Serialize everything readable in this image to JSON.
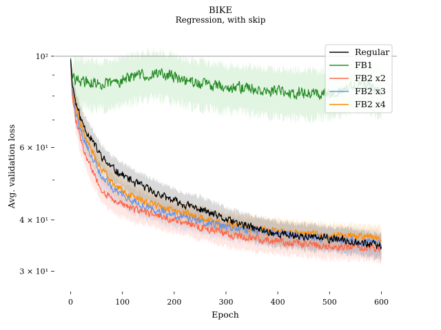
{
  "chart_data": {
    "type": "line",
    "title": "BIKE",
    "subtitle": "Regression, with skip",
    "xlabel": "Epoch",
    "ylabel": "Avg. validation loss",
    "xlim": [
      -30,
      630
    ],
    "ylim": [
      27,
      113
    ],
    "yscale": "log",
    "x_ticks": [
      0,
      100,
      200,
      300,
      400,
      500,
      600
    ],
    "y_major_ticks": [
      {
        "value": 100,
        "label": "10²"
      },
      {
        "value": 60,
        "label": "6 × 10¹"
      },
      {
        "value": 40,
        "label": "4 × 10¹"
      },
      {
        "value": 30,
        "label": "3 × 10¹"
      }
    ],
    "y_minor_ticks": [
      90,
      80,
      70,
      50
    ],
    "reference_line": 100,
    "legend_position": "top-right",
    "grid": false,
    "series": [
      {
        "name": "Regular",
        "color": "#000000",
        "x": [
          0,
          3,
          10,
          20,
          30,
          40,
          50,
          60,
          70,
          80,
          100,
          120,
          150,
          180,
          200,
          220,
          250,
          280,
          300,
          330,
          360,
          400,
          450,
          500,
          550,
          600
        ],
        "values": [
          98,
          86,
          77,
          70,
          66,
          63,
          59.5,
          57,
          55,
          53.5,
          51.5,
          49.5,
          47.5,
          45.5,
          44.5,
          43.5,
          42.5,
          41,
          40,
          39,
          38,
          37,
          36.5,
          36,
          35.5,
          34.5
        ],
        "band": 0.07
      },
      {
        "name": "FB1",
        "color": "#228b22",
        "band_color": "#9ed99e",
        "x": [
          0,
          3,
          10,
          20,
          40,
          60,
          80,
          100,
          120,
          140,
          160,
          180,
          200,
          220,
          250,
          280,
          300,
          330,
          360,
          400,
          450,
          500,
          540,
          560,
          580,
          600
        ],
        "values": [
          99,
          89,
          88,
          87,
          86,
          85.5,
          86,
          88,
          89,
          90,
          91,
          90,
          89,
          87,
          86,
          85,
          84,
          84,
          83,
          82,
          81.5,
          81.5,
          84,
          86,
          84,
          82
        ],
        "band": 0.13
      },
      {
        "name": "FB2 x2",
        "color": "#ff6347",
        "x": [
          0,
          3,
          10,
          20,
          30,
          40,
          50,
          60,
          70,
          80,
          100,
          120,
          150,
          180,
          200,
          220,
          250,
          280,
          300,
          330,
          360,
          400,
          450,
          500,
          550,
          600
        ],
        "values": [
          96,
          80,
          70,
          62,
          57,
          53,
          50,
          47.5,
          46,
          45,
          43.5,
          42.5,
          41.5,
          40.5,
          40,
          39.5,
          38.5,
          37.5,
          37,
          36.5,
          36,
          35.5,
          35,
          34.5,
          34.5,
          34
        ],
        "band": 0.07
      },
      {
        "name": "FB2 x3",
        "color": "#6495ed",
        "x": [
          0,
          3,
          10,
          20,
          30,
          40,
          50,
          60,
          70,
          80,
          100,
          120,
          150,
          180,
          200,
          220,
          250,
          280,
          300,
          330,
          360,
          400,
          450,
          500,
          550,
          600
        ],
        "values": [
          97,
          83,
          73,
          66,
          61,
          57,
          54,
          51,
          49.5,
          48,
          46,
          44.5,
          43,
          42,
          41,
          40.5,
          40,
          39,
          38.5,
          38,
          37.5,
          37,
          36.5,
          36,
          35.5,
          35
        ],
        "band": 0.07
      },
      {
        "name": "FB2 x4",
        "color": "#ff8c00",
        "x": [
          0,
          3,
          10,
          20,
          30,
          40,
          50,
          60,
          70,
          80,
          100,
          120,
          150,
          180,
          200,
          220,
          250,
          280,
          300,
          330,
          360,
          400,
          450,
          500,
          550,
          600
        ],
        "values": [
          97,
          84,
          75,
          68,
          63,
          59,
          56,
          53,
          51,
          49.5,
          47,
          45.5,
          44,
          42.5,
          42,
          41.5,
          40.5,
          39.5,
          39,
          38.5,
          38,
          37.5,
          37,
          36.5,
          36.5,
          36
        ],
        "band": 0.07
      }
    ]
  }
}
